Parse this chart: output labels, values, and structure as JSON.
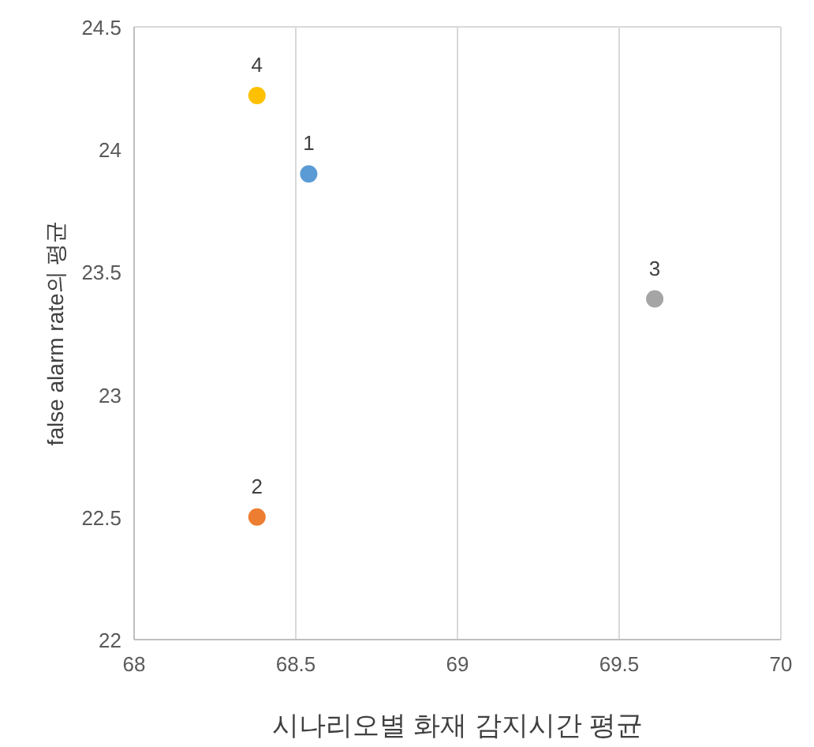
{
  "chart_data": {
    "type": "scatter",
    "xlabel": "시나리오별 화재 감지시간 평균",
    "ylabel": "false alarm rate의 평균",
    "xlim": [
      68,
      70
    ],
    "xticks": [
      68,
      68.5,
      69,
      69.5,
      70
    ],
    "ylim": [
      22,
      24.5
    ],
    "yticks": [
      22,
      22.5,
      23,
      23.5,
      24,
      24.5
    ],
    "grid": "x",
    "marker": "circle",
    "series": [
      {
        "name": "1",
        "color": "#5b9bd5",
        "x": [
          68.54
        ],
        "values": [
          23.9
        ]
      },
      {
        "name": "2",
        "color": "#ed7d31",
        "x": [
          68.38
        ],
        "values": [
          22.5
        ]
      },
      {
        "name": "3",
        "color": "#a5a5a5",
        "x": [
          69.61
        ],
        "values": [
          23.39
        ]
      },
      {
        "name": "4",
        "color": "#ffc000",
        "x": [
          68.38
        ],
        "values": [
          24.22
        ]
      }
    ]
  }
}
